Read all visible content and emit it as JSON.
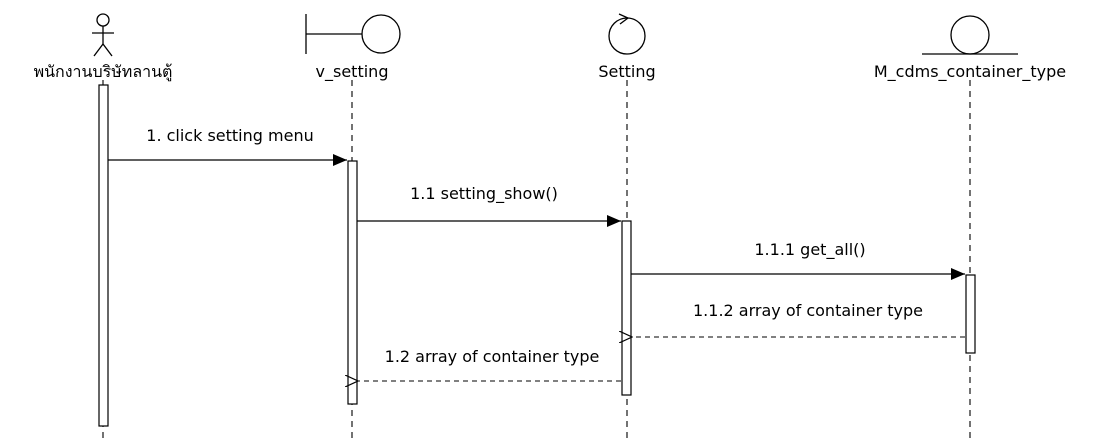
{
  "participants": [
    {
      "id": "actor",
      "kind": "actor",
      "label": "พนักงานบริษัทลานตู้"
    },
    {
      "id": "v_setting",
      "kind": "boundary",
      "label": "v_setting"
    },
    {
      "id": "setting",
      "kind": "control",
      "label": "Setting"
    },
    {
      "id": "m_cdms",
      "kind": "entity",
      "label": "M_cdms_container_type"
    }
  ],
  "messages": [
    {
      "id": "msg-1",
      "label": "1. click setting menu",
      "from": "actor",
      "to": "v_setting",
      "type": "sync"
    },
    {
      "id": "msg-1-1",
      "label": "1.1 setting_show()",
      "from": "v_setting",
      "to": "setting",
      "type": "sync"
    },
    {
      "id": "msg-1-1-1",
      "label": "1.1.1 get_all()",
      "from": "setting",
      "to": "m_cdms",
      "type": "sync"
    },
    {
      "id": "msg-1-1-2",
      "label": "1.1.2 array of container type",
      "from": "m_cdms",
      "to": "setting",
      "type": "return"
    },
    {
      "id": "msg-1-2",
      "label": "1.2 array of container type",
      "from": "setting",
      "to": "v_setting",
      "type": "return"
    }
  ],
  "colors": {
    "line": "#000000",
    "background": "#ffffff"
  }
}
